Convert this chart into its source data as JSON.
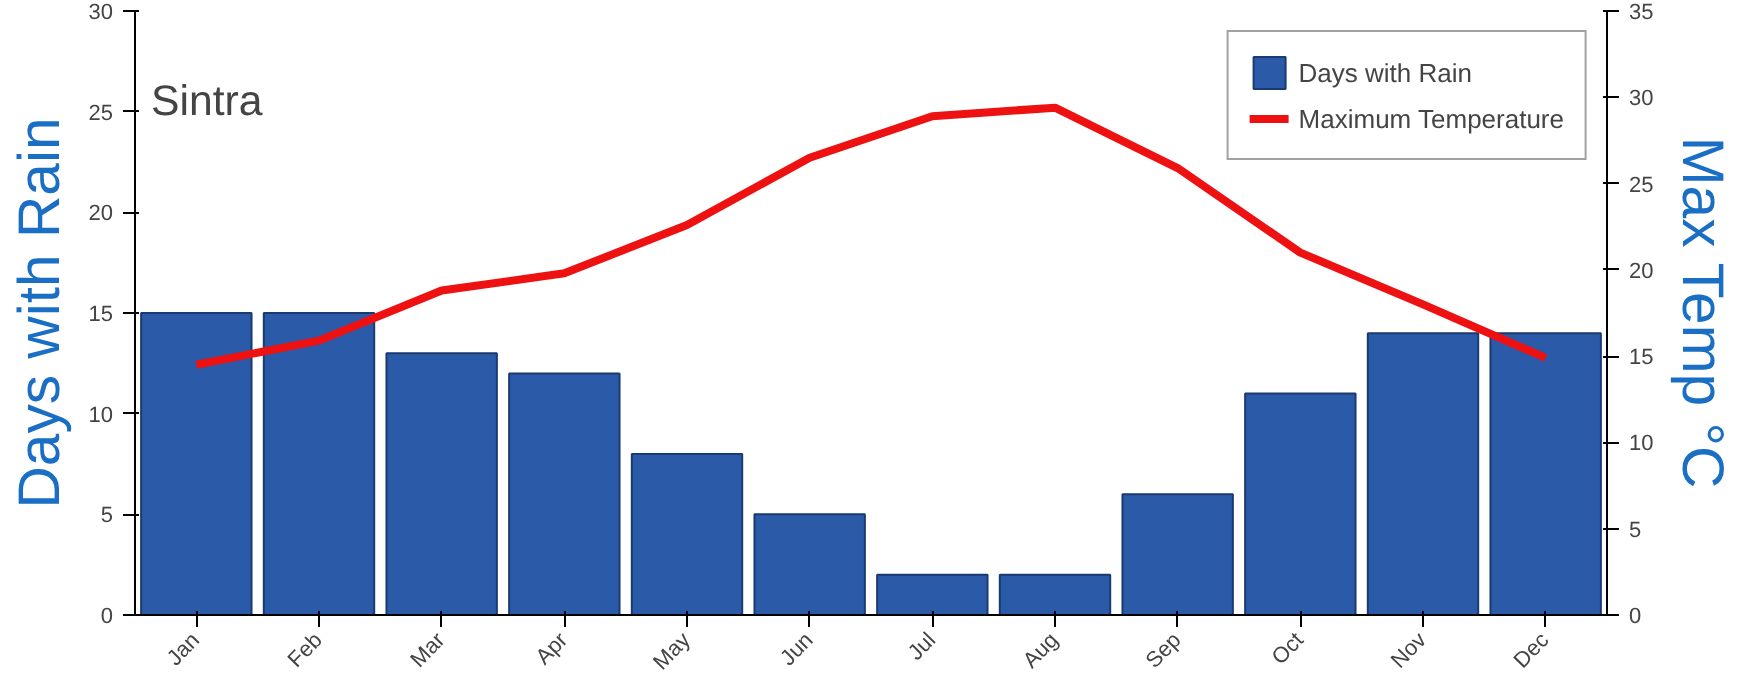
{
  "chart_data": {
    "type": "bar",
    "title": "Sintra",
    "categories": [
      "Jan",
      "Feb",
      "Mar",
      "Apr",
      "May",
      "Jun",
      "Jul",
      "Aug",
      "Sep",
      "Oct",
      "Nov",
      "Dec"
    ],
    "ylabel": "Days with Rain",
    "y2label": "Max Temp °C",
    "ylim": [
      0,
      30
    ],
    "yticks": [
      0,
      5,
      10,
      15,
      20,
      25,
      30
    ],
    "y2lim": [
      0,
      35
    ],
    "y2ticks": [
      0,
      5,
      10,
      15,
      20,
      25,
      30,
      35
    ],
    "legend": "top right",
    "series": [
      {
        "name": "Days with Rain",
        "color": "#2b5ba8",
        "values": [
          15,
          15,
          13,
          12,
          8,
          5,
          2,
          2,
          6,
          11,
          14,
          14
        ]
      },
      {
        "name": "Maximum Temperature",
        "type": "line",
        "axis": "y2",
        "color": "#ee1111",
        "values": [
          14.5,
          15.9,
          18.8,
          19.8,
          22.6,
          26.5,
          28.9,
          29.4,
          25.9,
          21,
          18,
          14.9
        ]
      }
    ]
  }
}
